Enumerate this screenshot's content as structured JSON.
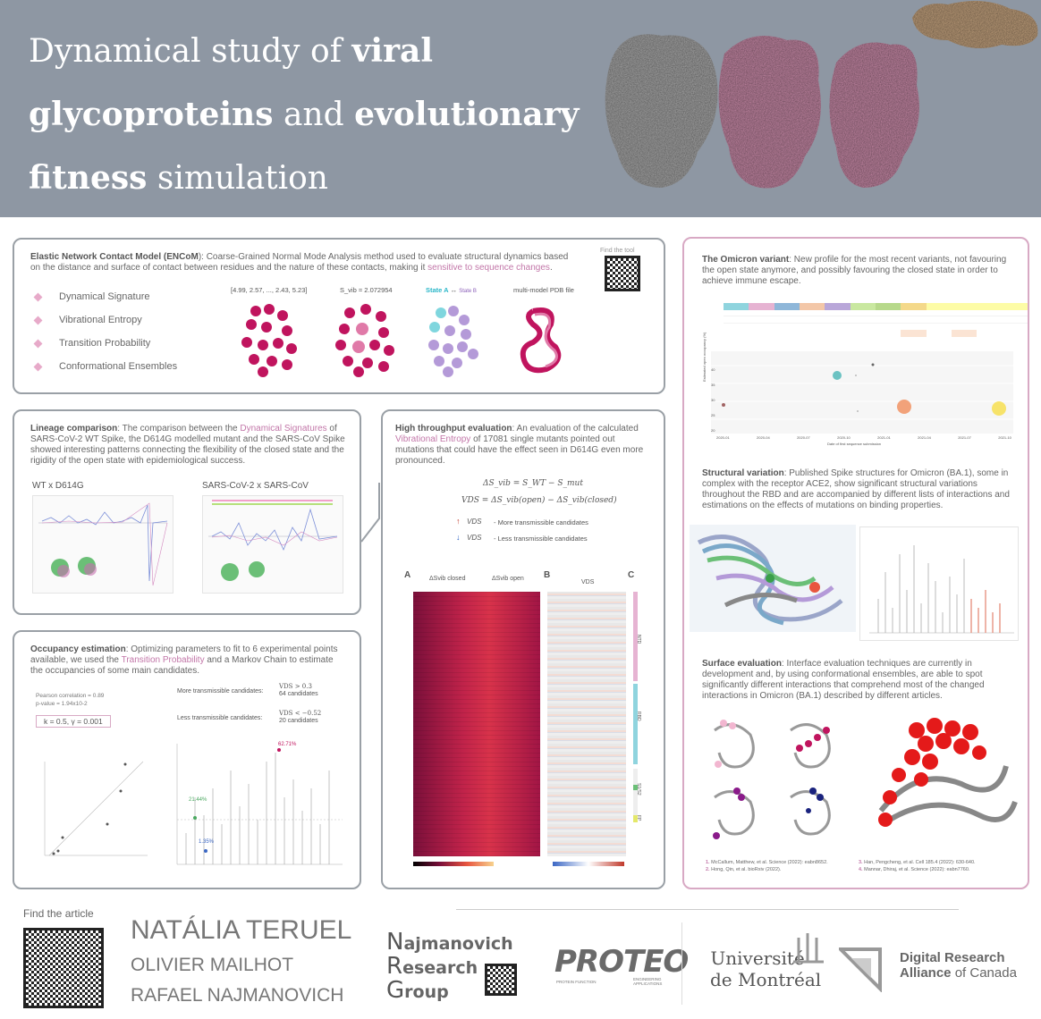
{
  "header": {
    "title_parts": [
      "Dynamical study of ",
      "viral",
      "glycoproteins",
      " and ",
      "evolutionary",
      "fitness",
      " simulation"
    ]
  },
  "encom": {
    "title_prefix": "Elastic Network Contact Model (",
    "title_bold": "ENCoM",
    "title_suffix": "): Coarse-Grained Normal Mode Analysis method used to evaluate structural dynamics based on the distance and surface of contact between residues and the nature of these contacts, making it",
    "highlight": "sensitive to sequence changes",
    "bullets": [
      "Dynamical Signature",
      "Vibrational Entropy",
      "Transition Probability",
      "Conformational Ensembles"
    ],
    "find_tool": "Find the tool",
    "labels": {
      "sig": "[4.99, 2.57, ..., 2.43, 5.23]",
      "svib": "S_vib = 2.072954",
      "state_a": "State A",
      "state_b": "State B",
      "arrow": " ↔ ",
      "pdb": "multi-model PDB file"
    }
  },
  "lineage": {
    "title": "Lineage comparison",
    "text_a": ": The comparison between the",
    "highlight": "Dynamical Signatures",
    "text_b": " of SARS-CoV-2 WT Spike, the D614G modelled mutant and the SARS-CoV Spike showed interesting patterns connecting the flexibility of the closed state and the rigidity of the open state with epidemiological success.",
    "chart1_label": "WT x D614G",
    "chart2_label": "SARS-CoV-2 x SARS-CoV"
  },
  "htp": {
    "title": "High throughput evaluation",
    "text_a": ": An evaluation of the calculated",
    "highlight": "Vibrational Entropy",
    "text_b": " of 17081 single mutants pointed out mutations that could have the effect seen in D614G even more pronounced.",
    "eq1": "ΔS_vib = S_WT − S_mut",
    "eq2": "VDS = ΔS_vib(open) − ΔS_vib(closed)",
    "up_label": "VDS",
    "up_text": "- More transmissible candidates",
    "down_label": "VDS",
    "down_text": "- Less transmissible candidates",
    "panel_a": "A",
    "panel_b": "B",
    "panel_c": "C",
    "col_closed": "ΔSvib closed",
    "col_open": "ΔSvib open",
    "col_vds": "VDS",
    "domains": [
      "NTD",
      "RBD",
      "S1/S2",
      "FP"
    ]
  },
  "occupancy": {
    "title": "Occupancy estimation",
    "text_a": ": Optimizing parameters to fit to 6 experimental points available, we used the",
    "highlight": "Transition Probability",
    "text_b": " and a Markov Chain to estimate the occupancies of some main candidates.",
    "pearson": "Pearson correlation = 0.89",
    "pvalue": "p-value = 1.94x10-2",
    "params": "k = 0.5, γ = 0.001",
    "more_label": "More transmissible candidates:",
    "more_cond": "VDS > 0.3",
    "more_count": "64 candidates",
    "less_label": "Less transmissible candidates:",
    "less_cond": "VDS < −0.52",
    "less_count": "20 candidates",
    "peak1": "62.71%",
    "peak2": "21.44%",
    "peak3": "1.35%"
  },
  "omicron": {
    "title": "The Omicron variant",
    "text": ": New profile for the most recent variants, not favouring the open state anymore, and possibly favouring the closed state in order to achieve immune escape.",
    "xticks": [
      "2020-01",
      "2020-04",
      "2020-07",
      "2020-10",
      "2021-01",
      "2021-04",
      "2021-07",
      "2021-10"
    ],
    "xlabel": "Date of first sequence submission",
    "ylabel": "Estimated open occupancy (%)",
    "yticks": [
      "20",
      "25",
      "30",
      "35",
      "40"
    ]
  },
  "structural": {
    "title": "Structural variation",
    "text": ": Published Spike structures for Omicron (BA.1), some in complex with the receptor ACE2, show significant structural variations throughout the RBD and are accompanied by different lists of interactions and estimations on the effects of mutations on binding properties."
  },
  "surface": {
    "title": "Surface evaluation",
    "text": ": Interface evaluation techniques are currently in development and, by using conformational ensembles, are able to spot significantly different interactions that comprehend most of the changed interactions in Omicron (BA.1) described by different articles."
  },
  "refs": [
    {
      "num": "1.",
      "text": " McCallum, Matthew, et al. Science (2022): eabn8652."
    },
    {
      "num": "2.",
      "text": " Hong, Qin, et al. bioRxiv (2022)."
    },
    {
      "num": "3.",
      "text": " Han, Pengcheng, et al. Cell 185.4 (2022): 630-640."
    },
    {
      "num": "4.",
      "text": " Mannar, Dhiraj, et al. Science (2022): eabn7760."
    }
  ],
  "footer": {
    "find_article": "Find the article",
    "author1": "NATÁLIA TERUEL",
    "author2": "OLIVIER MAILHOT",
    "author3": "RAFAEL NAJMANOVICH",
    "nrg": [
      "N",
      "ajmanovich",
      "R",
      "esearch",
      "G",
      "roup"
    ],
    "proteo": "PROTEO",
    "proteo_sub1": "PROTEIN FUNCTION",
    "proteo_sub2": "ENGINEERING APPLICATIONS",
    "udem1": "Université",
    "udem2": "de Montréal",
    "drac1": "Digital Research",
    "drac2": "Alliance",
    "drac3": " of Canada"
  }
}
